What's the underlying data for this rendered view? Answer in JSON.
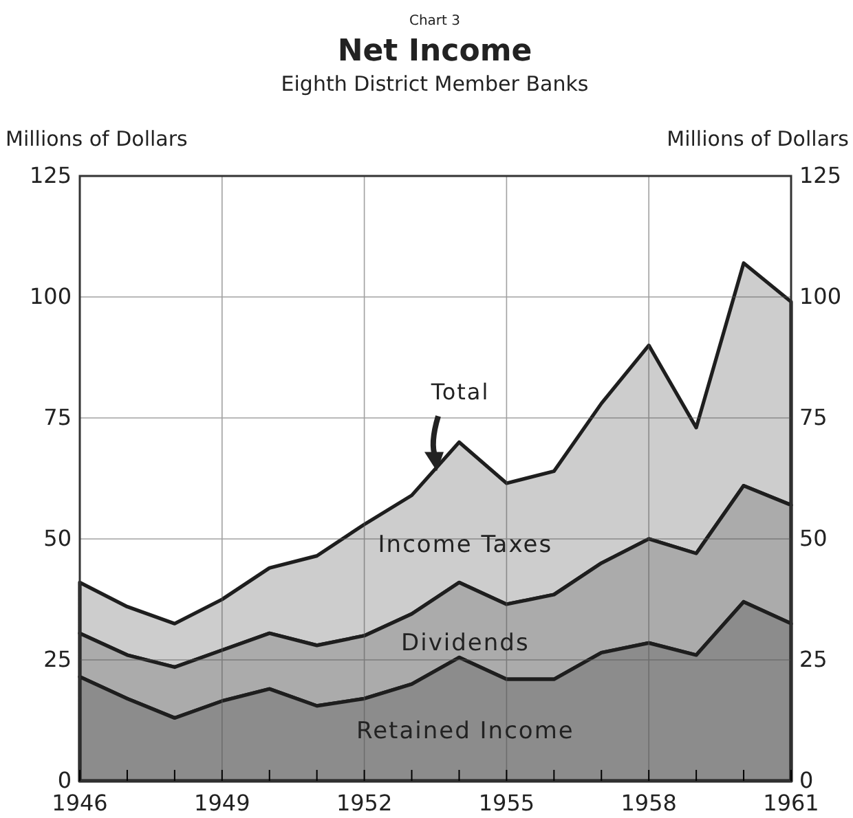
{
  "chart_data": {
    "type": "area",
    "stacked": true,
    "title": "Net Income",
    "subtitle": "Eighth District Member Banks",
    "annotations": [
      "Chart 3",
      {
        "text": "Total",
        "x": 1953.5,
        "y": 64
      }
    ],
    "ylabel": "Millions of Dollars",
    "y2label": "Millions of Dollars",
    "x": [
      1946,
      1947,
      1948,
      1949,
      1950,
      1951,
      1952,
      1953,
      1954,
      1955,
      1956,
      1957,
      1958,
      1959,
      1960,
      1961
    ],
    "series": [
      {
        "name": "Retained Income",
        "color": "#8c8c8c",
        "values": [
          21.5,
          17,
          13,
          16.5,
          19,
          15.5,
          17,
          20,
          25.5,
          21,
          21,
          26.5,
          28.5,
          26,
          37,
          32.5
        ]
      },
      {
        "name": "Dividends",
        "color": "#ababab",
        "values": [
          9,
          9,
          10.5,
          10.5,
          11.5,
          12.5,
          13,
          14.5,
          15.5,
          15.5,
          17.5,
          18.5,
          21.5,
          21,
          24,
          24.5
        ]
      },
      {
        "name": "Income Taxes",
        "color": "#cdcdcd",
        "values": [
          10.5,
          10,
          9,
          10.5,
          13.5,
          18.5,
          23,
          24.5,
          29,
          25,
          25.5,
          33,
          40,
          26,
          46,
          42
        ]
      }
    ],
    "xlim": [
      1946,
      1961
    ],
    "xticks": [
      1946,
      {
        "value": 1947,
        "label": null
      },
      {
        "value": 1948,
        "label": null
      },
      1949,
      {
        "value": 1950,
        "label": null
      },
      {
        "value": 1951,
        "label": null
      },
      1952,
      {
        "value": 1953,
        "label": null
      },
      {
        "value": 1954,
        "label": null
      },
      1955,
      {
        "value": 1956,
        "label": null
      },
      {
        "value": 1957,
        "label": null
      },
      1958,
      {
        "value": 1959,
        "label": null
      },
      {
        "value": 1960,
        "label": null
      },
      1961
    ],
    "ylim": [
      0,
      125
    ],
    "yticks": [
      0,
      25,
      50,
      75,
      100,
      125
    ],
    "y2lim": [
      0,
      125
    ],
    "y2ticks": [
      0,
      25,
      50,
      75,
      100,
      125
    ],
    "grid": true,
    "line_style": "solid"
  }
}
